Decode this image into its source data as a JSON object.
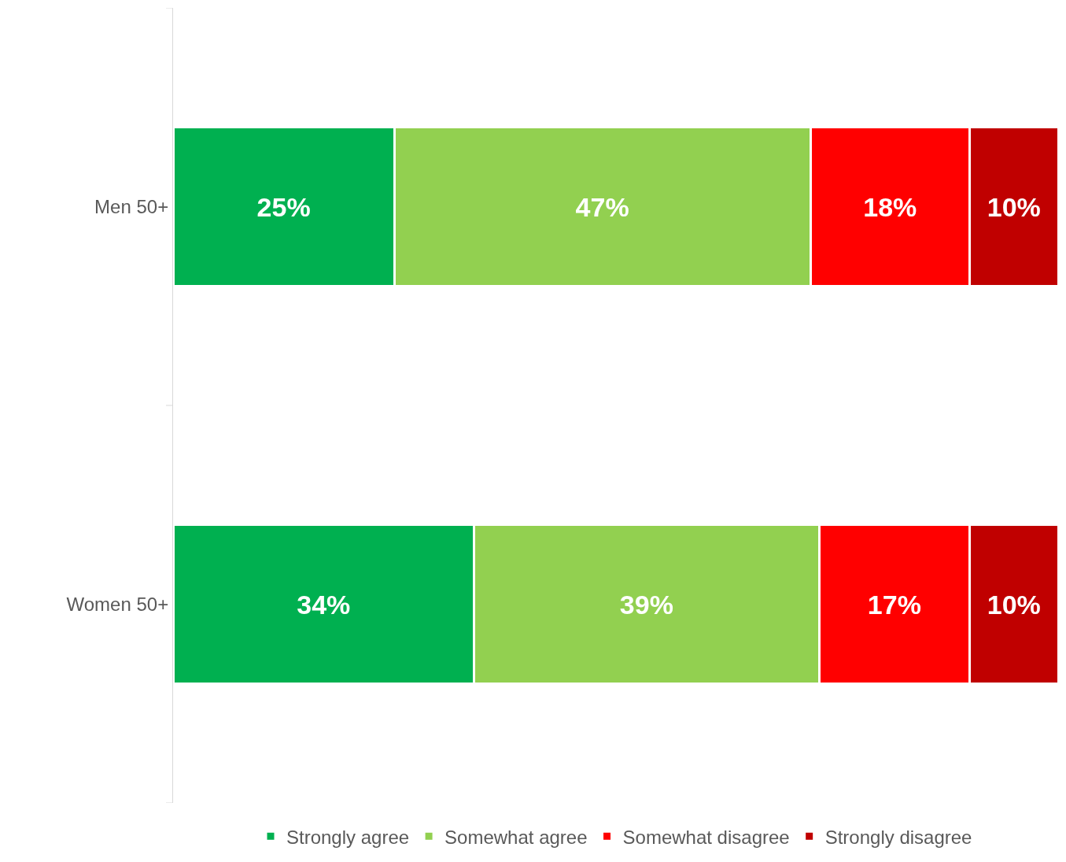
{
  "chart_data": {
    "type": "bar",
    "orientation": "horizontal",
    "stacked": true,
    "categories": [
      "Men 50+",
      "Women 50+"
    ],
    "series": [
      {
        "name": "Strongly agree",
        "color": "#00b050",
        "values": [
          25,
          34
        ],
        "value_labels": [
          "25%",
          "34%"
        ]
      },
      {
        "name": "Somewhat agree",
        "color": "#92d050",
        "values": [
          47,
          39
        ],
        "value_labels": [
          "47%",
          "39%"
        ]
      },
      {
        "name": "Somewhat disagree",
        "color": "#ff0000",
        "values": [
          18,
          17
        ],
        "value_labels": [
          "18%",
          "17%"
        ]
      },
      {
        "name": "Strongly disagree",
        "color": "#c00000",
        "values": [
          10,
          10
        ],
        "value_labels": [
          "10%",
          "10%"
        ]
      }
    ],
    "tick_labels": "y",
    "legend": "bottom"
  }
}
